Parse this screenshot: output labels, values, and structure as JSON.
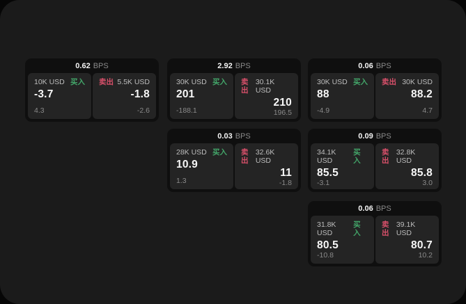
{
  "labels": {
    "bps": "BPS",
    "buy": "买入",
    "sell": "卖出"
  },
  "colors": {
    "buy": "#43a569",
    "sell": "#d8506a",
    "panel_bg": "#1b1b1b",
    "card_bg": "#0f0f0f",
    "subcard_bg": "#242424"
  },
  "cards": [
    {
      "bps": "0.62",
      "buy": {
        "size": "10K USD",
        "price": "-3.7",
        "delta": "4.3"
      },
      "sell": {
        "size": "5.5K USD",
        "price": "-1.8",
        "delta": "-2.6"
      }
    },
    {
      "bps": "2.92",
      "buy": {
        "size": "30K USD",
        "price": "201",
        "delta": "-188.1"
      },
      "sell": {
        "size": "30.1K USD",
        "price": "210",
        "delta": "196.5"
      }
    },
    {
      "bps": "0.06",
      "buy": {
        "size": "30K USD",
        "price": "88",
        "delta": "-4.9"
      },
      "sell": {
        "size": "30K USD",
        "price": "88.2",
        "delta": "4.7"
      }
    },
    {
      "bps": "0.03",
      "buy": {
        "size": "28K USD",
        "price": "10.9",
        "delta": "1.3"
      },
      "sell": {
        "size": "32.6K USD",
        "price": "11",
        "delta": "-1.8"
      }
    },
    {
      "bps": "0.09",
      "buy": {
        "size": "34.1K USD",
        "price": "85.5",
        "delta": "-3.1"
      },
      "sell": {
        "size": "32.8K USD",
        "price": "85.8",
        "delta": "3.0"
      }
    },
    {
      "bps": "0.06",
      "buy": {
        "size": "31.8K USD",
        "price": "80.5",
        "delta": "-10.8"
      },
      "sell": {
        "size": "39.1K USD",
        "price": "80.7",
        "delta": "10.2"
      }
    }
  ]
}
